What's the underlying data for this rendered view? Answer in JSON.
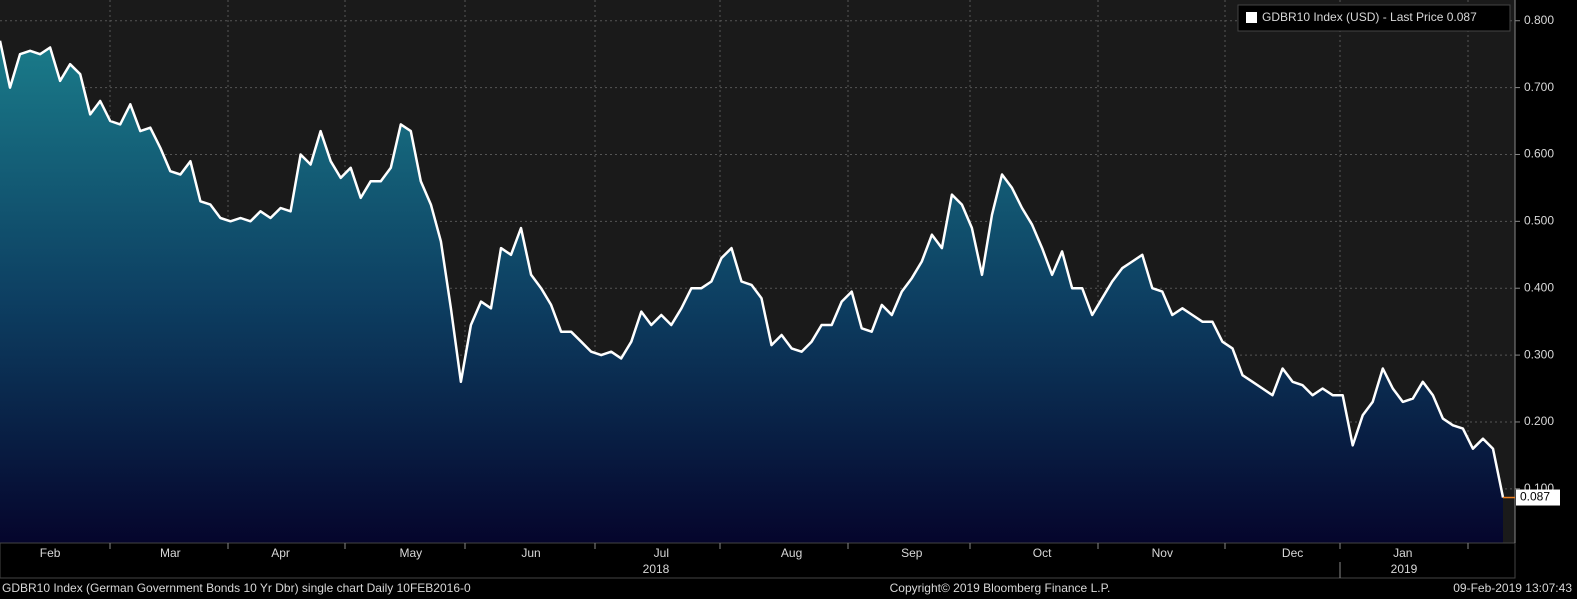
{
  "chart_data": {
    "type": "area",
    "series": [
      {
        "name": "GDBR10 Index (USD)  - Last Price 0.087",
        "color": "#ffffff",
        "values": [
          0.77,
          0.7,
          0.75,
          0.755,
          0.75,
          0.76,
          0.71,
          0.735,
          0.72,
          0.66,
          0.68,
          0.65,
          0.645,
          0.675,
          0.635,
          0.64,
          0.61,
          0.575,
          0.57,
          0.59,
          0.53,
          0.525,
          0.505,
          0.5,
          0.505,
          0.5,
          0.515,
          0.505,
          0.52,
          0.515,
          0.6,
          0.585,
          0.635,
          0.59,
          0.565,
          0.58,
          0.535,
          0.56,
          0.56,
          0.58,
          0.645,
          0.635,
          0.56,
          0.525,
          0.47,
          0.37,
          0.26,
          0.345,
          0.38,
          0.37,
          0.46,
          0.45,
          0.49,
          0.42,
          0.4,
          0.375,
          0.335,
          0.335,
          0.32,
          0.305,
          0.3,
          0.305,
          0.295,
          0.32,
          0.365,
          0.345,
          0.36,
          0.345,
          0.37,
          0.4,
          0.4,
          0.41,
          0.445,
          0.46,
          0.41,
          0.405,
          0.385,
          0.315,
          0.33,
          0.31,
          0.305,
          0.32,
          0.345,
          0.345,
          0.38,
          0.395,
          0.34,
          0.335,
          0.375,
          0.36,
          0.395,
          0.415,
          0.44,
          0.48,
          0.46,
          0.54,
          0.525,
          0.49,
          0.42,
          0.51,
          0.57,
          0.55,
          0.52,
          0.495,
          0.46,
          0.42,
          0.455,
          0.4,
          0.4,
          0.36,
          0.385,
          0.41,
          0.43,
          0.44,
          0.45,
          0.4,
          0.395,
          0.36,
          0.37,
          0.36,
          0.35,
          0.35,
          0.32,
          0.31,
          0.27,
          0.26,
          0.25,
          0.24,
          0.28,
          0.26,
          0.255,
          0.24,
          0.25,
          0.24,
          0.24,
          0.165,
          0.21,
          0.23,
          0.28,
          0.25,
          0.23,
          0.235,
          0.26,
          0.24,
          0.205,
          0.195,
          0.19,
          0.16,
          0.175,
          0.16,
          0.087
        ]
      }
    ],
    "categories": [
      null,
      null,
      null,
      null,
      null,
      "Feb",
      null,
      null,
      null,
      null,
      null,
      null,
      null,
      null,
      null,
      null,
      null,
      "Mar",
      null,
      null,
      null,
      null,
      null,
      null,
      null,
      null,
      null,
      null,
      "Apr",
      null,
      null,
      null,
      null,
      null,
      null,
      null,
      null,
      null,
      null,
      null,
      null,
      "May",
      null,
      null,
      null,
      null,
      null,
      null,
      null,
      null,
      null,
      null,
      null,
      "Jun",
      null,
      null,
      null,
      null,
      null,
      null,
      null,
      null,
      null,
      null,
      null,
      null,
      "Jul",
      null,
      null,
      null,
      null,
      null,
      null,
      null,
      null,
      null,
      null,
      null,
      null,
      "Aug",
      null,
      null,
      null,
      null,
      null,
      null,
      null,
      null,
      null,
      null,
      null,
      "Sep",
      null,
      null,
      null,
      null,
      null,
      null,
      null,
      null,
      null,
      null,
      null,
      null,
      "Oct",
      null,
      null,
      null,
      null,
      null,
      null,
      null,
      null,
      null,
      null,
      null,
      "Nov",
      null,
      null,
      null,
      null,
      null,
      null,
      null,
      null,
      null,
      null,
      null,
      null,
      "Dec",
      null,
      null,
      null,
      null,
      null,
      null,
      null,
      null,
      null,
      null,
      "Jan",
      null,
      null,
      null,
      null,
      null,
      null,
      null,
      null,
      null,
      null
    ],
    "year_labels": [
      "2018",
      "2019"
    ],
    "ylim": [
      0.019,
      0.831
    ],
    "yticks": [
      {
        "value": 0.1,
        "label": "0.100"
      },
      {
        "value": 0.2,
        "label": "0.200"
      },
      {
        "value": 0.3,
        "label": "0.300"
      },
      {
        "value": 0.4,
        "label": "0.400"
      },
      {
        "value": 0.5,
        "label": "0.500"
      },
      {
        "value": 0.6,
        "label": "0.600"
      },
      {
        "value": 0.7,
        "label": "0.700"
      },
      {
        "value": 0.8,
        "label": "0.800"
      }
    ],
    "last_price_tag": "0.087",
    "grid": true,
    "footer": {
      "left": "GDBR10 Index (German Government Bonds 10 Yr Dbr) single chart  Daily 10FEB2016-0",
      "center": "Copyright© 2019 Bloomberg Finance L.P.",
      "right": "09-Feb-2019 13:07:43"
    }
  }
}
